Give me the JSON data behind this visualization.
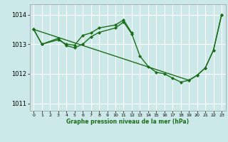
{
  "background_color": "#cce8e8",
  "grid_color": "#ffffff",
  "line_color": "#1a6e1a",
  "line_width": 1.0,
  "marker": "D",
  "marker_size": 2.0,
  "title": "Graphe pression niveau de la mer (hPa)",
  "xlim": [
    -0.5,
    23.5
  ],
  "ylim": [
    1010.75,
    1014.35
  ],
  "yticks": [
    1011,
    1012,
    1013,
    1014
  ],
  "xticks": [
    0,
    1,
    2,
    3,
    4,
    5,
    6,
    7,
    8,
    9,
    10,
    11,
    12,
    13,
    14,
    15,
    16,
    17,
    18,
    19,
    20,
    21,
    22,
    23
  ],
  "series": [
    {
      "x": [
        0,
        1,
        3,
        4,
        5,
        6,
        7,
        8,
        10,
        11,
        12,
        13,
        14,
        15,
        16,
        17,
        18,
        19,
        20,
        21,
        22,
        23
      ],
      "y": [
        1013.5,
        1013.0,
        1013.2,
        1012.95,
        1012.88,
        1013.0,
        1013.25,
        1013.4,
        1013.55,
        1013.75,
        1013.35,
        1012.6,
        1012.25,
        1012.05,
        1012.0,
        1011.85,
        1011.72,
        1011.78,
        1011.95,
        1012.2,
        1012.8,
        1014.0
      ]
    },
    {
      "x": [
        0,
        1,
        3,
        4,
        5,
        6,
        7,
        8,
        10,
        11,
        12
      ],
      "y": [
        1013.5,
        1013.0,
        1013.15,
        1013.0,
        1012.97,
        1013.3,
        1013.38,
        1013.55,
        1013.65,
        1013.82,
        1013.38
      ]
    },
    {
      "x": [
        0,
        19,
        20,
        21,
        22,
        23
      ],
      "y": [
        1013.5,
        1011.78,
        1011.95,
        1012.2,
        1012.8,
        1014.0
      ]
    }
  ]
}
